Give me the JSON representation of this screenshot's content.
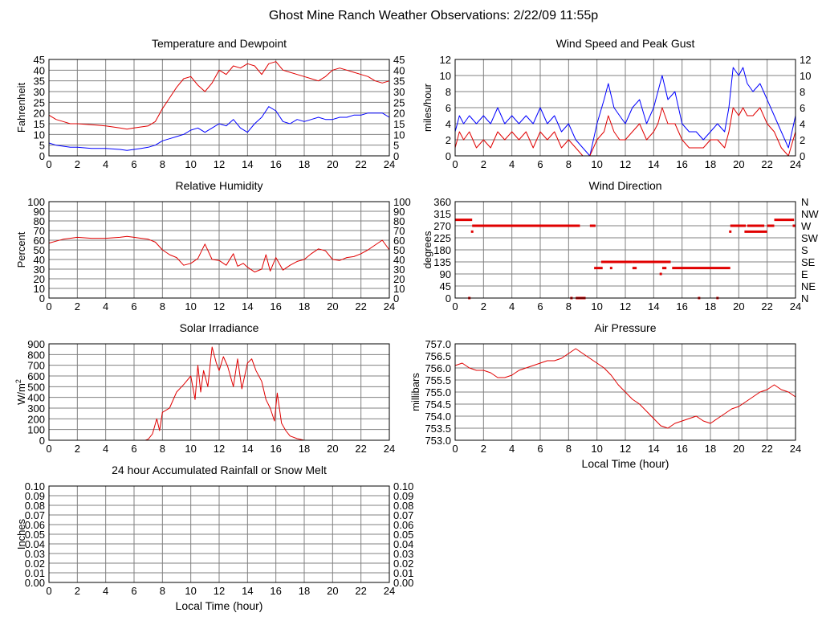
{
  "page": {
    "title": "Ghost Mine Ranch Weather Observations: 2/22/09 11:55p"
  },
  "colors": {
    "red": "#e00000",
    "blue": "#0000ff",
    "grid": "#808080",
    "axis": "#000000"
  },
  "chart_data": [
    {
      "id": "temp",
      "type": "line",
      "title": "Temperature and Dewpoint",
      "ylabel": "Fahrenheit",
      "xlabel": "",
      "xlim": [
        0,
        24
      ],
      "ylim": [
        0,
        45
      ],
      "yticks": [
        0,
        5,
        10,
        15,
        20,
        25,
        30,
        35,
        40,
        45
      ],
      "ytick_labels": [
        "0",
        "5",
        "10",
        "15",
        "20",
        "25",
        "30",
        "35",
        "40",
        "45"
      ],
      "right_ticks": true,
      "xticks": [
        0,
        2,
        4,
        6,
        8,
        10,
        12,
        14,
        16,
        18,
        20,
        22,
        24
      ],
      "series": [
        {
          "color": "#e00000",
          "x": [
            0,
            0.5,
            1,
            1.5,
            2,
            3,
            4,
            5,
            5.5,
            6,
            6.5,
            7,
            7.5,
            8,
            8.5,
            9,
            9.5,
            10,
            10.5,
            11,
            11.5,
            12,
            12.5,
            13,
            13.5,
            14,
            14.5,
            15,
            15.5,
            16,
            16.5,
            17,
            17.5,
            18,
            18.5,
            19,
            19.5,
            20,
            20.5,
            21,
            21.5,
            22,
            22.5,
            23,
            23.5,
            24
          ],
          "y": [
            19,
            17,
            16,
            15,
            15,
            14.5,
            14,
            13,
            12.5,
            13,
            13.5,
            14,
            16,
            22,
            27,
            32,
            36,
            37,
            33,
            30,
            34,
            40,
            38,
            42,
            41,
            43,
            42,
            38,
            43,
            44,
            40,
            39,
            38,
            37,
            36,
            35,
            37,
            40,
            41,
            40,
            39,
            38,
            37,
            35,
            34,
            35
          ]
        },
        {
          "color": "#0000ff",
          "x": [
            0,
            0.5,
            1,
            1.5,
            2,
            3,
            4,
            5,
            5.5,
            6,
            6.5,
            7,
            7.5,
            8,
            8.5,
            9,
            9.5,
            10,
            10.5,
            11,
            11.5,
            12,
            12.5,
            13,
            13.5,
            14,
            14.5,
            15,
            15.5,
            16,
            16.5,
            17,
            17.5,
            18,
            18.5,
            19,
            19.5,
            20,
            20.5,
            21,
            21.5,
            22,
            22.5,
            23,
            23.5,
            24
          ],
          "y": [
            6,
            5,
            4.5,
            4,
            4,
            3.5,
            3.5,
            3,
            2.5,
            3,
            3.5,
            4,
            5,
            7,
            8,
            9,
            10,
            12,
            13,
            11,
            13,
            15,
            14,
            17,
            13,
            11,
            15,
            18,
            23,
            21,
            16,
            15,
            17,
            16,
            17,
            18,
            17,
            17,
            18,
            18,
            19,
            19,
            20,
            20,
            20,
            18
          ]
        }
      ]
    },
    {
      "id": "wind",
      "type": "line",
      "title": "Wind Speed and Peak Gust",
      "ylabel": "miles/hour",
      "xlabel": "",
      "xlim": [
        0,
        24
      ],
      "ylim": [
        0,
        12
      ],
      "yticks": [
        0,
        2,
        4,
        6,
        8,
        10,
        12
      ],
      "ytick_labels": [
        "0",
        "2",
        "4",
        "6",
        "8",
        "10",
        "12"
      ],
      "right_ticks": true,
      "xticks": [
        0,
        2,
        4,
        6,
        8,
        10,
        12,
        14,
        16,
        18,
        20,
        22,
        24
      ],
      "series": [
        {
          "color": "#0000ff",
          "x": [
            0,
            0.3,
            0.6,
            1,
            1.5,
            2,
            2.5,
            3,
            3.5,
            4,
            4.5,
            5,
            5.5,
            6,
            6.5,
            7,
            7.5,
            8,
            8.5,
            9,
            9.5,
            10,
            10.5,
            10.8,
            11.2,
            11.6,
            12,
            12.5,
            13,
            13.5,
            14,
            14.3,
            14.6,
            15,
            15.5,
            16,
            16.5,
            17,
            17.5,
            18,
            18.5,
            19,
            19.3,
            19.6,
            20,
            20.3,
            20.6,
            21,
            21.5,
            22,
            22.5,
            23,
            23.5,
            24
          ],
          "y": [
            3,
            5,
            4,
            5,
            4,
            5,
            4,
            6,
            4,
            5,
            4,
            5,
            4,
            6,
            4,
            5,
            3,
            4,
            2,
            1,
            0,
            4,
            7,
            9,
            6,
            5,
            4,
            6,
            7,
            4,
            6,
            8,
            10,
            7,
            8,
            4,
            3,
            3,
            2,
            3,
            4,
            3,
            6,
            11,
            10,
            11,
            9,
            8,
            9,
            7,
            5,
            3,
            1,
            5
          ]
        },
        {
          "color": "#e00000",
          "x": [
            0,
            0.3,
            0.6,
            1,
            1.5,
            2,
            2.5,
            3,
            3.5,
            4,
            4.5,
            5,
            5.5,
            6,
            6.5,
            7,
            7.5,
            8,
            8.5,
            9,
            9.5,
            10,
            10.5,
            10.8,
            11.2,
            11.6,
            12,
            12.5,
            13,
            13.5,
            14,
            14.3,
            14.6,
            15,
            15.5,
            16,
            16.5,
            17,
            17.5,
            18,
            18.5,
            19,
            19.3,
            19.6,
            20,
            20.3,
            20.6,
            21,
            21.5,
            22,
            22.5,
            23,
            23.5,
            24
          ],
          "y": [
            1,
            3,
            2,
            3,
            1,
            2,
            1,
            3,
            2,
            3,
            2,
            3,
            1,
            3,
            2,
            3,
            1,
            2,
            1,
            0,
            0,
            2,
            3,
            5,
            3,
            2,
            2,
            3,
            4,
            2,
            3,
            4,
            6,
            4,
            4,
            2,
            1,
            1,
            1,
            2,
            2,
            1,
            3,
            6,
            5,
            6,
            5,
            5,
            6,
            4,
            3,
            1,
            0,
            3
          ]
        }
      ]
    },
    {
      "id": "humidity",
      "type": "line",
      "title": "Relative Humidity",
      "ylabel": "Percent",
      "xlabel": "",
      "xlim": [
        0,
        24
      ],
      "ylim": [
        0,
        100
      ],
      "yticks": [
        0,
        10,
        20,
        30,
        40,
        50,
        60,
        70,
        80,
        90,
        100
      ],
      "ytick_labels": [
        "0",
        "10",
        "20",
        "30",
        "40",
        "50",
        "60",
        "70",
        "80",
        "90",
        "100"
      ],
      "right_ticks": true,
      "xticks": [
        0,
        2,
        4,
        6,
        8,
        10,
        12,
        14,
        16,
        18,
        20,
        22,
        24
      ],
      "series": [
        {
          "color": "#e00000",
          "x": [
            0,
            0.5,
            1,
            1.5,
            2,
            3,
            4,
            5,
            5.5,
            6,
            6.5,
            7,
            7.5,
            8,
            8.5,
            9,
            9.5,
            10,
            10.5,
            11,
            11.5,
            12,
            12.5,
            13,
            13.3,
            13.7,
            14,
            14.5,
            15,
            15.3,
            15.6,
            16,
            16.5,
            17,
            17.5,
            18,
            18.5,
            19,
            19.5,
            20,
            20.5,
            21,
            21.5,
            22,
            22.5,
            23,
            23.5,
            24
          ],
          "y": [
            57,
            59,
            61,
            62,
            63,
            62,
            62,
            63,
            64,
            63,
            62,
            61,
            58,
            50,
            45,
            42,
            34,
            36,
            41,
            56,
            40,
            39,
            34,
            46,
            33,
            36,
            32,
            27,
            30,
            45,
            28,
            42,
            29,
            34,
            38,
            40,
            46,
            51,
            49,
            40,
            39,
            42,
            43,
            46,
            50,
            55,
            60,
            50
          ]
        }
      ]
    },
    {
      "id": "winddir",
      "type": "scatter",
      "title": "Wind Direction",
      "ylabel": "degrees",
      "xlabel": "",
      "xlim": [
        0,
        24
      ],
      "ylim": [
        0,
        360
      ],
      "yticks": [
        0,
        45,
        90,
        135,
        180,
        225,
        270,
        315,
        360
      ],
      "ytick_labels": [
        "0",
        "45",
        "90",
        "135",
        "180",
        "225",
        "270",
        "315",
        "360"
      ],
      "right_tick_labels": [
        "N",
        "NE",
        "E",
        "SE",
        "S",
        "SW",
        "W",
        "NW",
        "N"
      ],
      "xticks": [
        0,
        2,
        4,
        6,
        8,
        10,
        12,
        14,
        16,
        18,
        20,
        22,
        24
      ],
      "series": [
        {
          "color": "#e00000",
          "segments": [
            [
              0,
              1.2,
              292
            ],
            [
              1.2,
              8.8,
              270
            ],
            [
              9.5,
              9.9,
              270
            ],
            [
              8.5,
              9.2,
              0
            ],
            [
              9.8,
              10.4,
              112
            ],
            [
              10.3,
              12.5,
              135
            ],
            [
              12.5,
              15.2,
              135
            ],
            [
              12.5,
              12.8,
              112
            ],
            [
              14.6,
              14.9,
              112
            ],
            [
              15.3,
              19.4,
              112
            ],
            [
              19.4,
              20.5,
              270
            ],
            [
              20.6,
              21.8,
              270
            ],
            [
              22,
              22.5,
              270
            ],
            [
              22.5,
              23.9,
              292
            ],
            [
              20.4,
              22,
              248
            ],
            [
              23.8,
              24,
              270
            ]
          ],
          "points": [
            [
              1.0,
              0
            ],
            [
              1.2,
              248
            ],
            [
              11.0,
              112
            ],
            [
              14.5,
              90
            ],
            [
              19.4,
              248
            ],
            [
              8.2,
              0
            ],
            [
              17.2,
              0
            ],
            [
              18.5,
              0
            ]
          ]
        }
      ]
    },
    {
      "id": "solar",
      "type": "line",
      "title": "Solar Irradiance",
      "ylabel": "W/m",
      "ylabel_sup": "2",
      "xlabel": "",
      "xlim": [
        0,
        24
      ],
      "ylim": [
        0,
        900
      ],
      "yticks": [
        0,
        100,
        200,
        300,
        400,
        500,
        600,
        700,
        800,
        900
      ],
      "ytick_labels": [
        "0",
        "100",
        "200",
        "300",
        "400",
        "500",
        "600",
        "700",
        "800",
        "900"
      ],
      "right_ticks": false,
      "xticks": [
        0,
        2,
        4,
        6,
        8,
        10,
        12,
        14,
        16,
        18,
        20,
        22,
        24
      ],
      "series": [
        {
          "color": "#e00000",
          "x": [
            0,
            6.8,
            7.0,
            7.3,
            7.6,
            7.8,
            8.0,
            8.5,
            9.0,
            9.5,
            10.0,
            10.3,
            10.5,
            10.7,
            10.9,
            11.2,
            11.5,
            11.8,
            12.0,
            12.3,
            12.6,
            13.0,
            13.3,
            13.6,
            14.0,
            14.3,
            14.6,
            15.0,
            15.3,
            15.6,
            15.9,
            16.1,
            16.4,
            16.7,
            17.0,
            17.5,
            18.0,
            24
          ],
          "y": [
            0,
            0,
            10,
            60,
            200,
            90,
            260,
            300,
            450,
            520,
            600,
            380,
            700,
            450,
            650,
            500,
            870,
            720,
            650,
            780,
            690,
            500,
            760,
            480,
            720,
            760,
            650,
            550,
            380,
            300,
            180,
            440,
            160,
            90,
            40,
            15,
            0,
            0
          ]
        }
      ]
    },
    {
      "id": "pressure",
      "type": "line",
      "title": "Air Pressure",
      "ylabel": "millibars",
      "xlabel": "Local Time (hour)",
      "xlim": [
        0,
        24
      ],
      "ylim": [
        753.0,
        757.0
      ],
      "yticks": [
        753.0,
        753.5,
        754.0,
        754.5,
        755.0,
        755.5,
        756.0,
        756.5,
        757.0
      ],
      "ytick_labels": [
        "753.0",
        "753.5",
        "754.0",
        "754.5",
        "755.0",
        "755.5",
        "756.0",
        "756.5",
        "757.0"
      ],
      "right_ticks": false,
      "xticks": [
        0,
        2,
        4,
        6,
        8,
        10,
        12,
        14,
        16,
        18,
        20,
        22,
        24
      ],
      "series": [
        {
          "color": "#e00000",
          "x": [
            0,
            0.5,
            1,
            1.5,
            2,
            2.5,
            3,
            3.5,
            4,
            4.5,
            5,
            5.5,
            6,
            6.5,
            7,
            7.5,
            8,
            8.5,
            9,
            9.5,
            10,
            10.5,
            11,
            11.5,
            12,
            12.5,
            13,
            13.5,
            14,
            14.5,
            15,
            15.5,
            16,
            16.5,
            17,
            17.5,
            18,
            18.5,
            19,
            19.5,
            20,
            20.5,
            21,
            21.5,
            22,
            22.5,
            23,
            23.5,
            24
          ],
          "y": [
            756.1,
            756.2,
            756.0,
            755.9,
            755.9,
            755.8,
            755.6,
            755.6,
            755.7,
            755.9,
            756.0,
            756.1,
            756.2,
            756.3,
            756.3,
            756.4,
            756.6,
            756.8,
            756.6,
            756.4,
            756.2,
            756.0,
            755.7,
            755.3,
            755.0,
            754.7,
            754.5,
            754.2,
            753.9,
            753.6,
            753.5,
            753.7,
            753.8,
            753.9,
            754.0,
            753.8,
            753.7,
            753.9,
            754.1,
            754.3,
            754.4,
            754.6,
            754.8,
            755.0,
            755.1,
            755.3,
            755.1,
            755.0,
            754.8
          ]
        }
      ]
    },
    {
      "id": "rain",
      "type": "line",
      "title": "24 hour Accumulated Rainfall or Snow Melt",
      "ylabel": "Inches",
      "xlabel": "Local Time (hour)",
      "xlim": [
        0,
        24
      ],
      "ylim": [
        0,
        0.1
      ],
      "yticks": [
        0,
        0.01,
        0.02,
        0.03,
        0.04,
        0.05,
        0.06,
        0.07,
        0.08,
        0.09,
        0.1
      ],
      "ytick_labels": [
        "0.00",
        "0.01",
        "0.02",
        "0.03",
        "0.04",
        "0.05",
        "0.06",
        "0.07",
        "0.08",
        "0.09",
        "0.10"
      ],
      "right_ticks": true,
      "xticks": [
        0,
        2,
        4,
        6,
        8,
        10,
        12,
        14,
        16,
        18,
        20,
        22,
        24
      ],
      "series": [
        {
          "color": "#e00000",
          "x": [
            0,
            24
          ],
          "y": [
            0,
            0
          ]
        }
      ]
    }
  ]
}
